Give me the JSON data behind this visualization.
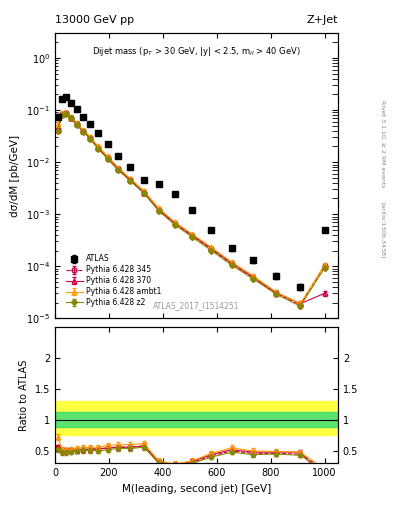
{
  "title_left": "13000 GeV pp",
  "title_right": "Z+Jet",
  "annotation": "Dijet mass (p$_{T}$ > 30 GeV, |y| < 2.5, m$_{ll}$ > 40 GeV)",
  "watermark": "ATLAS_2017_I1514251",
  "right_label_main": "Rivet 3.1.10, ≥ 2.9M events",
  "right_label_arxiv": "[arXiv:1306.3438]",
  "xlabel": "M(leading, second jet) [GeV]",
  "ylabel_main": "dσ/dM [pb/GeV]",
  "ylabel_ratio": "Ratio to ATLAS",
  "ylim_main": [
    1e-05,
    3.0
  ],
  "ylim_ratio": [
    0.3,
    2.5
  ],
  "yticks_ratio": [
    0.5,
    1.0,
    1.5,
    2.0
  ],
  "ytick_labels_ratio": [
    "0.5",
    "1",
    "1.5",
    "2"
  ],
  "xlim": [
    0,
    1050
  ],
  "atlas_x": [
    10,
    25,
    40,
    60,
    80,
    105,
    130,
    160,
    195,
    235,
    280,
    330,
    385,
    445,
    510,
    580,
    655,
    735,
    820,
    910,
    1000
  ],
  "atlas_y": [
    0.075,
    0.165,
    0.175,
    0.14,
    0.105,
    0.075,
    0.055,
    0.036,
    0.022,
    0.013,
    0.008,
    0.0045,
    0.0038,
    0.0024,
    0.0012,
    0.0005,
    0.00022,
    0.00013,
    6.5e-05,
    4e-05,
    0.0005
  ],
  "atlas_yerr": [
    0.008,
    0.01,
    0.01,
    0.009,
    0.007,
    0.005,
    0.004,
    0.003,
    0.002,
    0.001,
    0.0006,
    0.00035,
    0.0003,
    0.0002,
    0.0001,
    5e-05,
    2e-05,
    1.5e-05,
    8e-06,
    5e-06,
    5e-05
  ],
  "p345_x": [
    10,
    25,
    40,
    60,
    80,
    105,
    130,
    160,
    195,
    235,
    280,
    330,
    385,
    445,
    510,
    580,
    655,
    735,
    820,
    910,
    1000
  ],
  "p345_y": [
    0.042,
    0.083,
    0.087,
    0.071,
    0.054,
    0.039,
    0.029,
    0.019,
    0.012,
    0.0073,
    0.0045,
    0.0026,
    0.0012,
    0.00065,
    0.00038,
    0.00021,
    0.00011,
    6e-05,
    3e-05,
    1.8e-05,
    0.0001
  ],
  "p345_yerr": [
    0.004,
    0.006,
    0.006,
    0.005,
    0.004,
    0.003,
    0.002,
    0.0015,
    0.001,
    0.0006,
    0.00035,
    0.0002,
    0.0001,
    5e-05,
    3e-05,
    1.5e-05,
    8e-06,
    5e-06,
    3e-06,
    2e-06,
    1e-05
  ],
  "p370_x": [
    10,
    25,
    40,
    60,
    80,
    105,
    130,
    160,
    195,
    235,
    280,
    330,
    385,
    445,
    510,
    580,
    655,
    735,
    820,
    910,
    1000
  ],
  "p370_y": [
    0.042,
    0.083,
    0.087,
    0.071,
    0.054,
    0.039,
    0.029,
    0.019,
    0.012,
    0.0073,
    0.0045,
    0.0026,
    0.0012,
    0.00068,
    0.00039,
    0.00022,
    0.000115,
    6.2e-05,
    3.1e-05,
    1.9e-05,
    3e-05
  ],
  "p370_yerr": [
    0.004,
    0.006,
    0.006,
    0.005,
    0.004,
    0.003,
    0.002,
    0.0015,
    0.001,
    0.0006,
    0.00035,
    0.0002,
    0.0001,
    5e-05,
    3e-05,
    1.5e-05,
    8e-06,
    5e-06,
    3e-06,
    2e-06,
    3e-06
  ],
  "pambt1_x": [
    10,
    25,
    40,
    60,
    80,
    105,
    130,
    160,
    195,
    235,
    280,
    330,
    385,
    445,
    510,
    580,
    655,
    735,
    820,
    910,
    1000
  ],
  "pambt1_y": [
    0.055,
    0.088,
    0.09,
    0.074,
    0.057,
    0.041,
    0.031,
    0.02,
    0.013,
    0.0078,
    0.0048,
    0.0028,
    0.0013,
    0.0007,
    0.00041,
    0.00023,
    0.00012,
    6.5e-05,
    3.2e-05,
    1.9e-05,
    0.000105
  ],
  "pambt1_yerr": [
    0.005,
    0.006,
    0.006,
    0.005,
    0.004,
    0.003,
    0.002,
    0.0015,
    0.001,
    0.0006,
    0.00035,
    0.0002,
    0.0001,
    5e-05,
    3e-05,
    1.5e-05,
    8e-06,
    5e-06,
    3e-06,
    2e-06,
    1e-05
  ],
  "pz2_x": [
    10,
    25,
    40,
    60,
    80,
    105,
    130,
    160,
    195,
    235,
    280,
    330,
    385,
    445,
    510,
    580,
    655,
    735,
    820,
    910,
    1000
  ],
  "pz2_y": [
    0.04,
    0.08,
    0.084,
    0.069,
    0.052,
    0.038,
    0.028,
    0.018,
    0.0115,
    0.007,
    0.0043,
    0.0025,
    0.00115,
    0.00062,
    0.00036,
    0.0002,
    0.000105,
    5.7e-05,
    2.9e-05,
    1.7e-05,
    9.2e-05
  ],
  "pz2_yerr": [
    0.004,
    0.005,
    0.005,
    0.004,
    0.003,
    0.002,
    0.002,
    0.001,
    0.0008,
    0.0005,
    0.0003,
    0.00018,
    9e-05,
    4.5e-05,
    2.8e-05,
    1.4e-05,
    7e-06,
    4e-06,
    2.5e-06,
    1.5e-06,
    8e-06
  ],
  "ratio_band_green_lo": 0.88,
  "ratio_band_green_hi": 1.12,
  "ratio_band_yellow_lo": 0.75,
  "ratio_band_yellow_hi": 1.3,
  "ratio_345_x": [
    10,
    25,
    40,
    60,
    80,
    105,
    130,
    160,
    195,
    235,
    280,
    330,
    385,
    445,
    510,
    580,
    655,
    735,
    820,
    910,
    1000
  ],
  "ratio_345_y": [
    0.56,
    0.5,
    0.5,
    0.51,
    0.51,
    0.52,
    0.53,
    0.53,
    0.55,
    0.56,
    0.56,
    0.58,
    0.32,
    0.27,
    0.32,
    0.42,
    0.5,
    0.46,
    0.46,
    0.45,
    0.2
  ],
  "ratio_345_yerr": [
    0.04,
    0.04,
    0.04,
    0.04,
    0.04,
    0.04,
    0.04,
    0.04,
    0.04,
    0.04,
    0.04,
    0.04,
    0.04,
    0.04,
    0.04,
    0.04,
    0.04,
    0.04,
    0.04,
    0.04,
    0.04
  ],
  "ratio_370_x": [
    10,
    25,
    40,
    60,
    80,
    105,
    130,
    160,
    195,
    235,
    280,
    330,
    385,
    445,
    510,
    580,
    655,
    735,
    820,
    910,
    1000
  ],
  "ratio_370_y": [
    0.56,
    0.5,
    0.5,
    0.51,
    0.51,
    0.52,
    0.53,
    0.53,
    0.55,
    0.56,
    0.56,
    0.58,
    0.32,
    0.28,
    0.33,
    0.44,
    0.52,
    0.48,
    0.48,
    0.48,
    0.06
  ],
  "ratio_370_yerr": [
    0.04,
    0.04,
    0.04,
    0.04,
    0.04,
    0.04,
    0.04,
    0.04,
    0.04,
    0.04,
    0.04,
    0.04,
    0.04,
    0.04,
    0.04,
    0.04,
    0.04,
    0.04,
    0.04,
    0.04,
    0.015
  ],
  "ratio_ambt1_x": [
    10,
    25,
    40,
    60,
    80,
    105,
    130,
    160,
    195,
    235,
    280,
    330,
    385,
    445,
    510,
    580,
    655,
    735,
    820,
    910,
    1000
  ],
  "ratio_ambt1_y": [
    0.73,
    0.53,
    0.51,
    0.53,
    0.54,
    0.55,
    0.56,
    0.56,
    0.59,
    0.6,
    0.6,
    0.62,
    0.34,
    0.29,
    0.34,
    0.46,
    0.55,
    0.5,
    0.49,
    0.48,
    0.21
  ],
  "ratio_ambt1_yerr": [
    0.05,
    0.04,
    0.04,
    0.04,
    0.04,
    0.04,
    0.04,
    0.04,
    0.04,
    0.04,
    0.04,
    0.04,
    0.04,
    0.04,
    0.04,
    0.04,
    0.04,
    0.04,
    0.04,
    0.04,
    0.04
  ],
  "ratio_z2_x": [
    10,
    25,
    40,
    60,
    80,
    105,
    130,
    160,
    195,
    235,
    280,
    330,
    385,
    445,
    510,
    580,
    655,
    735,
    820,
    910,
    1000
  ],
  "ratio_z2_y": [
    0.53,
    0.48,
    0.48,
    0.49,
    0.5,
    0.51,
    0.51,
    0.5,
    0.52,
    0.54,
    0.54,
    0.56,
    0.3,
    0.26,
    0.3,
    0.4,
    0.48,
    0.44,
    0.45,
    0.43,
    0.18
  ],
  "ratio_z2_yerr": [
    0.04,
    0.04,
    0.04,
    0.04,
    0.04,
    0.04,
    0.04,
    0.04,
    0.04,
    0.04,
    0.04,
    0.04,
    0.03,
    0.03,
    0.03,
    0.03,
    0.03,
    0.03,
    0.03,
    0.03,
    0.03
  ],
  "color_atlas": "#000000",
  "color_345": "#cc0044",
  "color_370": "#cc0044",
  "color_ambt1": "#ff9900",
  "color_z2": "#888800",
  "color_green_band": "#33dd77",
  "color_yellow_band": "#ffff44"
}
